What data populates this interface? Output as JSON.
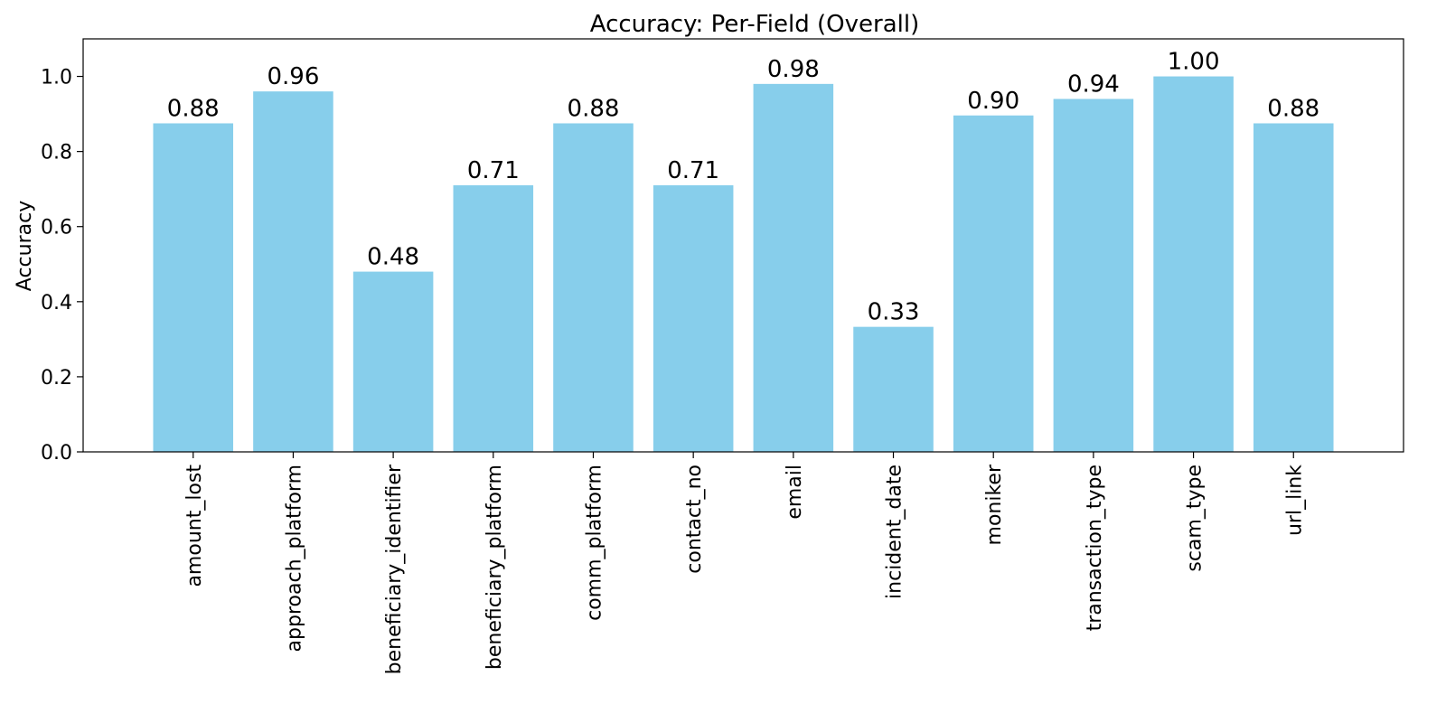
{
  "chart_data": {
    "type": "bar",
    "title": "Accuracy: Per-Field (Overall)",
    "xlabel": "",
    "ylabel": "Accuracy",
    "categories": [
      "amount_lost",
      "approach_platform",
      "beneficiary_identifier",
      "beneficiary_platform",
      "comm_platform",
      "contact_no",
      "email",
      "incident_date",
      "moniker",
      "transaction_type",
      "scam_type",
      "url_link"
    ],
    "values": [
      0.875,
      0.96,
      0.48,
      0.71,
      0.875,
      0.71,
      0.98,
      0.333,
      0.896,
      0.94,
      1.0,
      0.875
    ],
    "data_labels": [
      "0.88",
      "0.96",
      "0.48",
      "0.71",
      "0.88",
      "0.71",
      "0.98",
      "0.33",
      "0.90",
      "0.94",
      "1.00",
      "0.88"
    ],
    "ylim": [
      0,
      1.1
    ],
    "yticks": [
      0.0,
      0.2,
      0.4,
      0.6,
      0.8,
      1.0
    ],
    "ytick_labels": [
      "0.0",
      "0.2",
      "0.4",
      "0.6",
      "0.8",
      "1.0"
    ],
    "grid": false,
    "legend": "none",
    "bar_color": "#87CEEB",
    "axis_color": "#000000"
  }
}
